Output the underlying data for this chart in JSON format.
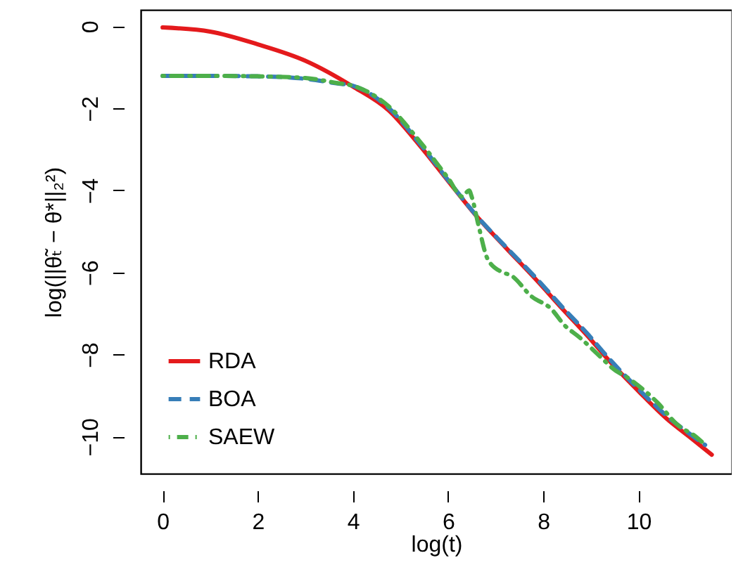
{
  "chart_data": {
    "type": "line",
    "xlabel": "log(t)",
    "ylabel": "log(||θ̃ₜ − θ*||₂²)",
    "xlim": [
      -0.46,
      11.96
    ],
    "ylim": [
      -10.9,
      0.4
    ],
    "xticks": [
      0,
      2,
      4,
      6,
      8,
      10
    ],
    "yticks": [
      -10,
      -8,
      -6,
      -4,
      -2,
      0
    ],
    "grid": false,
    "legend": "bottom left",
    "marker": "none",
    "series": [
      {
        "name": "RDA",
        "color": "#e41a1c",
        "line_style": "solid",
        "x": [
          0,
          1,
          2,
          3,
          4,
          4.75,
          5.4,
          6,
          6.6,
          7.2,
          7.9,
          8.35,
          8.95,
          9.33,
          10,
          10.6,
          11.1,
          11.54
        ],
        "values": [
          -0.03,
          -0.13,
          -0.44,
          -0.84,
          -1.47,
          -2.05,
          -2.9,
          -3.77,
          -4.63,
          -5.38,
          -6.24,
          -6.82,
          -7.57,
          -8.08,
          -8.89,
          -9.57,
          -10.03,
          -10.44
        ]
      },
      {
        "name": "BOA",
        "color": "#377eb8",
        "line_style": "dashed",
        "x": [
          0,
          1,
          2,
          3,
          3.65,
          4,
          4.75,
          5.4,
          6,
          6.6,
          7.2,
          7.9,
          8.35,
          8.95,
          9.33,
          10,
          10.6,
          11.1,
          11.4
        ],
        "values": [
          -1.21,
          -1.21,
          -1.22,
          -1.28,
          -1.39,
          -1.45,
          -1.99,
          -2.85,
          -3.75,
          -4.62,
          -5.36,
          -6.2,
          -6.78,
          -7.52,
          -8.03,
          -8.84,
          -9.5,
          -9.95,
          -10.2
        ]
      },
      {
        "name": "SAEW",
        "color": "#4daf4a",
        "line_style": "dotted",
        "x": [
          0,
          1,
          2,
          3,
          3.65,
          4,
          4.75,
          5.4,
          6,
          6.3,
          6.44,
          6.5,
          6.64,
          6.83,
          7.13,
          7.32,
          7.76,
          8.16,
          8.45,
          8.75,
          9.33,
          9.43,
          9.82,
          10.4,
          10.8,
          11.24,
          11.4
        ],
        "values": [
          -1.21,
          -1.21,
          -1.22,
          -1.26,
          -1.38,
          -1.45,
          -1.95,
          -2.8,
          -3.7,
          -4.15,
          -4.0,
          -4.17,
          -4.86,
          -5.67,
          -5.99,
          -6.07,
          -6.59,
          -6.88,
          -7.29,
          -7.57,
          -8.2,
          -8.31,
          -8.6,
          -9.17,
          -9.69,
          -10.03,
          -10.2
        ]
      }
    ]
  }
}
